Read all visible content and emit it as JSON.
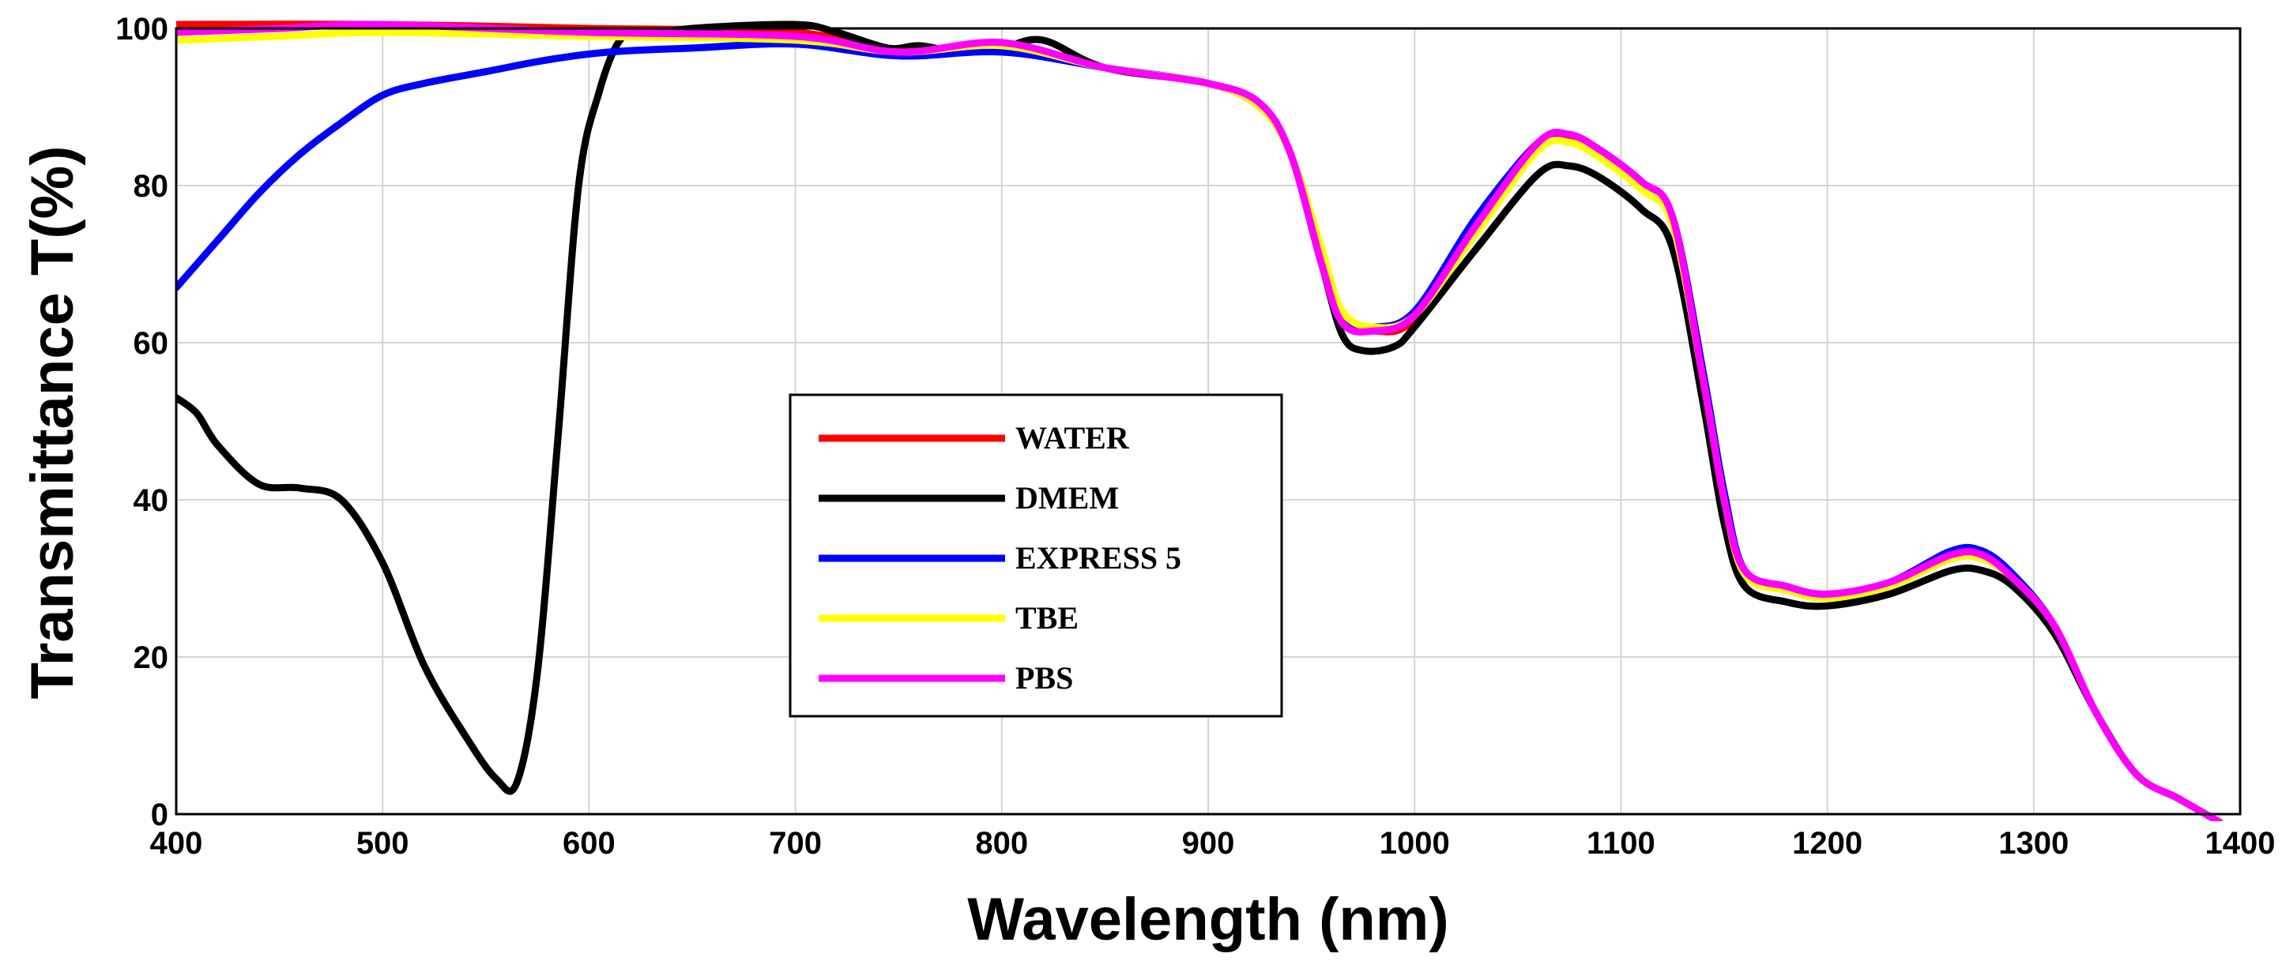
{
  "chart_data": {
    "type": "line",
    "title": "",
    "xlabel": "Wavelength (nm)",
    "ylabel": "Transmittance T(%)",
    "xlim": [
      400,
      1400
    ],
    "ylim": [
      0,
      100
    ],
    "xticks": [
      400,
      500,
      600,
      700,
      800,
      900,
      1000,
      1100,
      1200,
      1300,
      1400
    ],
    "yticks": [
      0,
      20,
      40,
      60,
      80,
      100
    ],
    "grid": true,
    "legend_position": "center-left",
    "series": [
      {
        "name": "WATER",
        "color": "#ff0000",
        "points": [
          [
            400,
            100.5
          ],
          [
            500,
            100.5
          ],
          [
            600,
            100
          ],
          [
            700,
            99.5
          ],
          [
            750,
            97
          ],
          [
            800,
            98
          ],
          [
            850,
            95
          ],
          [
            900,
            93
          ],
          [
            925,
            90
          ],
          [
            940,
            84
          ],
          [
            955,
            70
          ],
          [
            965,
            63
          ],
          [
            980,
            61.5
          ],
          [
            1000,
            63
          ],
          [
            1030,
            75
          ],
          [
            1060,
            85
          ],
          [
            1075,
            86
          ],
          [
            1090,
            84
          ],
          [
            1110,
            80
          ],
          [
            1125,
            75
          ],
          [
            1140,
            55
          ],
          [
            1150,
            40
          ],
          [
            1160,
            30.5
          ],
          [
            1180,
            28.5
          ],
          [
            1200,
            27.5
          ],
          [
            1230,
            29
          ],
          [
            1260,
            32.5
          ],
          [
            1275,
            32.5
          ],
          [
            1290,
            30
          ],
          [
            1310,
            24
          ],
          [
            1330,
            13
          ],
          [
            1350,
            5
          ],
          [
            1370,
            2
          ],
          [
            1390,
            -1
          ]
        ]
      },
      {
        "name": "DMEM",
        "color": "#000000",
        "points": [
          [
            400,
            53
          ],
          [
            410,
            51
          ],
          [
            420,
            47
          ],
          [
            440,
            42
          ],
          [
            460,
            41.5
          ],
          [
            480,
            40
          ],
          [
            500,
            32
          ],
          [
            520,
            19
          ],
          [
            540,
            10
          ],
          [
            555,
            4.5
          ],
          [
            565,
            4
          ],
          [
            575,
            18
          ],
          [
            585,
            48
          ],
          [
            595,
            80
          ],
          [
            605,
            92
          ],
          [
            615,
            98.5
          ],
          [
            625,
            99
          ],
          [
            650,
            100
          ],
          [
            700,
            100.5
          ],
          [
            720,
            99.5
          ],
          [
            745,
            97.5
          ],
          [
            760,
            97.8
          ],
          [
            780,
            97
          ],
          [
            800,
            97.5
          ],
          [
            820,
            98.5
          ],
          [
            850,
            95
          ],
          [
            900,
            93
          ],
          [
            925,
            90
          ],
          [
            940,
            84
          ],
          [
            955,
            70
          ],
          [
            965,
            61
          ],
          [
            975,
            59
          ],
          [
            990,
            59.5
          ],
          [
            1000,
            62
          ],
          [
            1030,
            72
          ],
          [
            1060,
            81.5
          ],
          [
            1075,
            82.5
          ],
          [
            1090,
            81
          ],
          [
            1110,
            77
          ],
          [
            1125,
            72
          ],
          [
            1140,
            52
          ],
          [
            1150,
            37
          ],
          [
            1160,
            29
          ],
          [
            1180,
            27
          ],
          [
            1200,
            26.5
          ],
          [
            1230,
            28
          ],
          [
            1260,
            31
          ],
          [
            1275,
            31
          ],
          [
            1290,
            29
          ],
          [
            1310,
            23
          ],
          [
            1330,
            13
          ],
          [
            1350,
            5
          ],
          [
            1370,
            2
          ],
          [
            1390,
            -1
          ]
        ]
      },
      {
        "name": "EXPRESS 5",
        "color": "#0000ff",
        "points": [
          [
            400,
            67
          ],
          [
            420,
            73
          ],
          [
            440,
            79
          ],
          [
            460,
            84
          ],
          [
            480,
            88
          ],
          [
            500,
            91.5
          ],
          [
            520,
            93
          ],
          [
            550,
            94.5
          ],
          [
            580,
            96
          ],
          [
            610,
            97
          ],
          [
            650,
            97.5
          ],
          [
            700,
            98
          ],
          [
            750,
            96.5
          ],
          [
            800,
            97
          ],
          [
            850,
            95
          ],
          [
            900,
            93
          ],
          [
            925,
            90
          ],
          [
            940,
            84
          ],
          [
            955,
            70
          ],
          [
            965,
            63
          ],
          [
            980,
            62
          ],
          [
            1000,
            64
          ],
          [
            1030,
            76
          ],
          [
            1060,
            85.5
          ],
          [
            1075,
            86.5
          ],
          [
            1090,
            84.5
          ],
          [
            1110,
            80.5
          ],
          [
            1125,
            76
          ],
          [
            1140,
            56
          ],
          [
            1150,
            41
          ],
          [
            1160,
            31
          ],
          [
            1180,
            29
          ],
          [
            1200,
            28
          ],
          [
            1230,
            29.5
          ],
          [
            1260,
            33.5
          ],
          [
            1275,
            33.5
          ],
          [
            1290,
            30.5
          ],
          [
            1310,
            24
          ],
          [
            1330,
            13
          ],
          [
            1350,
            5
          ],
          [
            1370,
            2
          ],
          [
            1390,
            -1
          ]
        ]
      },
      {
        "name": "TBE",
        "color": "#ffff00",
        "points": [
          [
            400,
            98.5
          ],
          [
            450,
            99
          ],
          [
            500,
            99.5
          ],
          [
            600,
            99
          ],
          [
            700,
            98.5
          ],
          [
            750,
            97
          ],
          [
            800,
            97.8
          ],
          [
            850,
            95
          ],
          [
            900,
            93
          ],
          [
            925,
            90
          ],
          [
            940,
            84
          ],
          [
            955,
            72
          ],
          [
            965,
            64
          ],
          [
            980,
            62
          ],
          [
            1000,
            63.5
          ],
          [
            1030,
            74
          ],
          [
            1060,
            84.5
          ],
          [
            1075,
            85.5
          ],
          [
            1090,
            83.5
          ],
          [
            1110,
            79.5
          ],
          [
            1125,
            75
          ],
          [
            1140,
            55
          ],
          [
            1150,
            40
          ],
          [
            1160,
            30.5
          ],
          [
            1180,
            28.5
          ],
          [
            1200,
            27.5
          ],
          [
            1230,
            29
          ],
          [
            1260,
            32.5
          ],
          [
            1275,
            32.5
          ],
          [
            1290,
            30
          ],
          [
            1310,
            24
          ],
          [
            1330,
            13
          ],
          [
            1350,
            5
          ],
          [
            1370,
            2
          ],
          [
            1390,
            -1
          ]
        ]
      },
      {
        "name": "PBS",
        "color": "#ff00ff",
        "points": [
          [
            400,
            99.5
          ],
          [
            450,
            100
          ],
          [
            500,
            100.5
          ],
          [
            600,
            99.5
          ],
          [
            700,
            99
          ],
          [
            750,
            97
          ],
          [
            800,
            98.2
          ],
          [
            850,
            95
          ],
          [
            900,
            93
          ],
          [
            925,
            90.5
          ],
          [
            940,
            84
          ],
          [
            955,
            70
          ],
          [
            965,
            62.5
          ],
          [
            980,
            61.5
          ],
          [
            1000,
            63.5
          ],
          [
            1030,
            75
          ],
          [
            1060,
            85.5
          ],
          [
            1075,
            86.5
          ],
          [
            1090,
            84.5
          ],
          [
            1110,
            80.5
          ],
          [
            1125,
            76
          ],
          [
            1140,
            55
          ],
          [
            1150,
            40
          ],
          [
            1160,
            31
          ],
          [
            1180,
            29
          ],
          [
            1200,
            28
          ],
          [
            1230,
            29.5
          ],
          [
            1260,
            33
          ],
          [
            1275,
            33
          ],
          [
            1290,
            30
          ],
          [
            1310,
            24
          ],
          [
            1330,
            13
          ],
          [
            1350,
            5
          ],
          [
            1370,
            2
          ],
          [
            1390,
            -1
          ]
        ]
      }
    ]
  }
}
